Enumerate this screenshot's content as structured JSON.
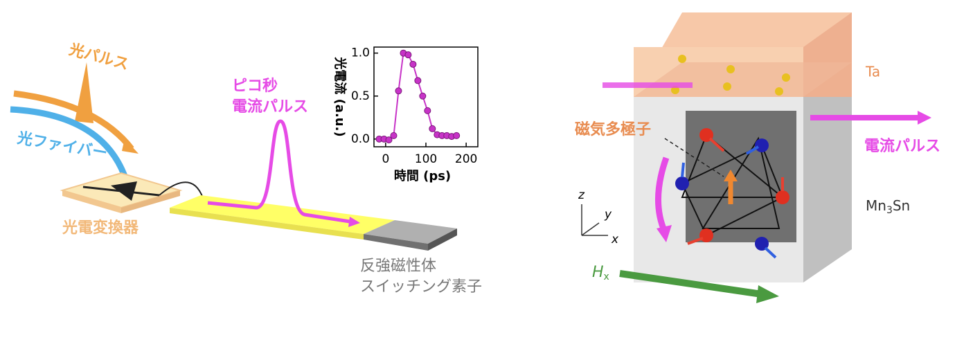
{
  "left": {
    "light_pulse": "光パルス",
    "fiber": "光ファイバー",
    "converter": "光電変換器",
    "pico_1": "ピコ秒",
    "pico_2": "電流パルス",
    "device_1": "反強磁性体",
    "device_2": "スイッチング素子"
  },
  "chart_data": {
    "type": "line",
    "x_label": "時間 (ps)",
    "y_label": "光電流 (a.u.)",
    "x": [
      -16,
      -4,
      8,
      20,
      32,
      44,
      56,
      68,
      80,
      92,
      104,
      116,
      128,
      140,
      152,
      164,
      176
    ],
    "values": [
      0,
      0,
      -0.01,
      0.04,
      0.56,
      1.0,
      0.98,
      0.87,
      0.68,
      0.5,
      0.33,
      0.12,
      0.05,
      0.04,
      0.04,
      0.03,
      0.04
    ],
    "color": "#c733c7",
    "xlim": [
      -29,
      229
    ],
    "ylim": [
      -0.09,
      1.07
    ],
    "xticks": [
      0,
      100,
      200
    ],
    "yticks": [
      {
        "value": 0,
        "label": "0.0"
      },
      {
        "value": 0.5,
        "label": "0.5"
      },
      {
        "value": 1,
        "label": "1.0"
      }
    ]
  },
  "right": {
    "ta": "Ta",
    "multipole": "磁気多極子",
    "current": "電流パルス",
    "mn3sn": [
      "Mn",
      "3",
      "Sn"
    ],
    "hx": [
      "H",
      "x"
    ],
    "axis_z": "z",
    "axis_y": "y",
    "axis_x": "x"
  }
}
